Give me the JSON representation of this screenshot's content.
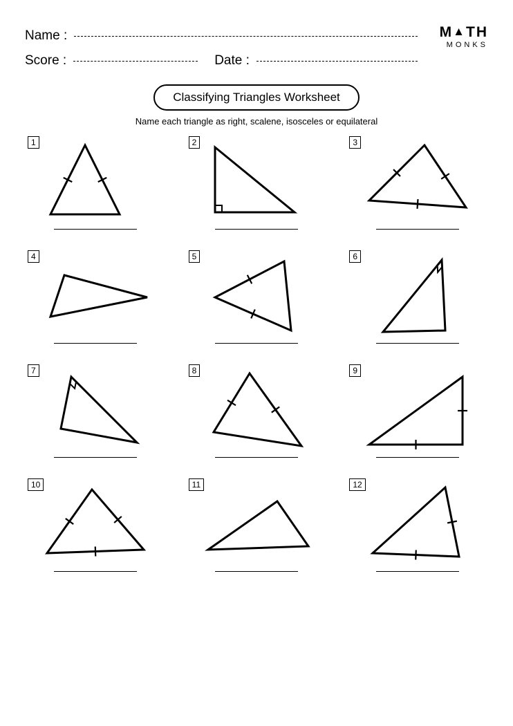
{
  "header": {
    "name_label": "Name :",
    "score_label": "Score :",
    "date_label": "Date :"
  },
  "logo": {
    "line1_pre": "M",
    "line1_tri": "▲",
    "line1_post": "TH",
    "line2": "MONKS"
  },
  "title": "Classifying Triangles Worksheet",
  "instruction": "Name each triangle as right, scalene, isosceles or equilateral",
  "style": {
    "stroke": "#000000",
    "stroke_width": 3,
    "tick_len": 8,
    "right_angle_size": 10,
    "bg": "#ffffff"
  },
  "problems": [
    {
      "n": "1",
      "pts": [
        [
          75,
          15
        ],
        [
          25,
          115
        ],
        [
          125,
          115
        ]
      ],
      "ticks": [
        [
          0,
          1
        ],
        [
          0,
          2
        ]
      ],
      "right_angle": null
    },
    {
      "n": "2",
      "pts": [
        [
          30,
          18
        ],
        [
          30,
          112
        ],
        [
          145,
          112
        ]
      ],
      "ticks": [],
      "right_angle": {
        "v": 1,
        "a": 0,
        "b": 2
      }
    },
    {
      "n": "3",
      "pts": [
        [
          100,
          15
        ],
        [
          20,
          95
        ],
        [
          160,
          105
        ]
      ],
      "ticks": [
        [
          0,
          1
        ],
        [
          0,
          2
        ],
        [
          1,
          2
        ]
      ],
      "right_angle": null
    },
    {
      "n": "4",
      "pts": [
        [
          45,
          38
        ],
        [
          25,
          98
        ],
        [
          165,
          70
        ]
      ],
      "ticks": [],
      "right_angle": null
    },
    {
      "n": "5",
      "pts": [
        [
          130,
          18
        ],
        [
          30,
          70
        ],
        [
          140,
          118
        ]
      ],
      "ticks": [
        [
          0,
          1
        ],
        [
          1,
          2
        ]
      ],
      "right_angle": null
    },
    {
      "n": "6",
      "pts": [
        [
          125,
          16
        ],
        [
          40,
          120
        ],
        [
          130,
          118
        ]
      ],
      "ticks": [],
      "right_angle": {
        "v": 0,
        "a": 1,
        "b": 2
      }
    },
    {
      "n": "7",
      "pts": [
        [
          55,
          20
        ],
        [
          40,
          95
        ],
        [
          150,
          115
        ]
      ],
      "ticks": [],
      "right_angle": {
        "v": 0,
        "a": 1,
        "b": 2
      }
    },
    {
      "n": "8",
      "pts": [
        [
          80,
          15
        ],
        [
          28,
          100
        ],
        [
          155,
          120
        ]
      ],
      "ticks": [
        [
          0,
          1
        ],
        [
          0,
          2
        ]
      ],
      "right_angle": null
    },
    {
      "n": "9",
      "pts": [
        [
          155,
          20
        ],
        [
          20,
          118
        ],
        [
          155,
          118
        ]
      ],
      "ticks": [
        [
          0,
          2
        ],
        [
          1,
          2
        ]
      ],
      "right_angle": null
    },
    {
      "n": "10",
      "pts": [
        [
          85,
          18
        ],
        [
          20,
          110
        ],
        [
          160,
          105
        ]
      ],
      "ticks": [
        [
          0,
          1
        ],
        [
          0,
          2
        ],
        [
          1,
          2
        ]
      ],
      "right_angle": null
    },
    {
      "n": "11",
      "pts": [
        [
          120,
          35
        ],
        [
          20,
          105
        ],
        [
          165,
          100
        ]
      ],
      "ticks": [],
      "right_angle": null
    },
    {
      "n": "12",
      "pts": [
        [
          130,
          15
        ],
        [
          25,
          110
        ],
        [
          150,
          115
        ]
      ],
      "ticks": [
        [
          0,
          2
        ],
        [
          1,
          2
        ]
      ],
      "right_angle": null
    }
  ]
}
